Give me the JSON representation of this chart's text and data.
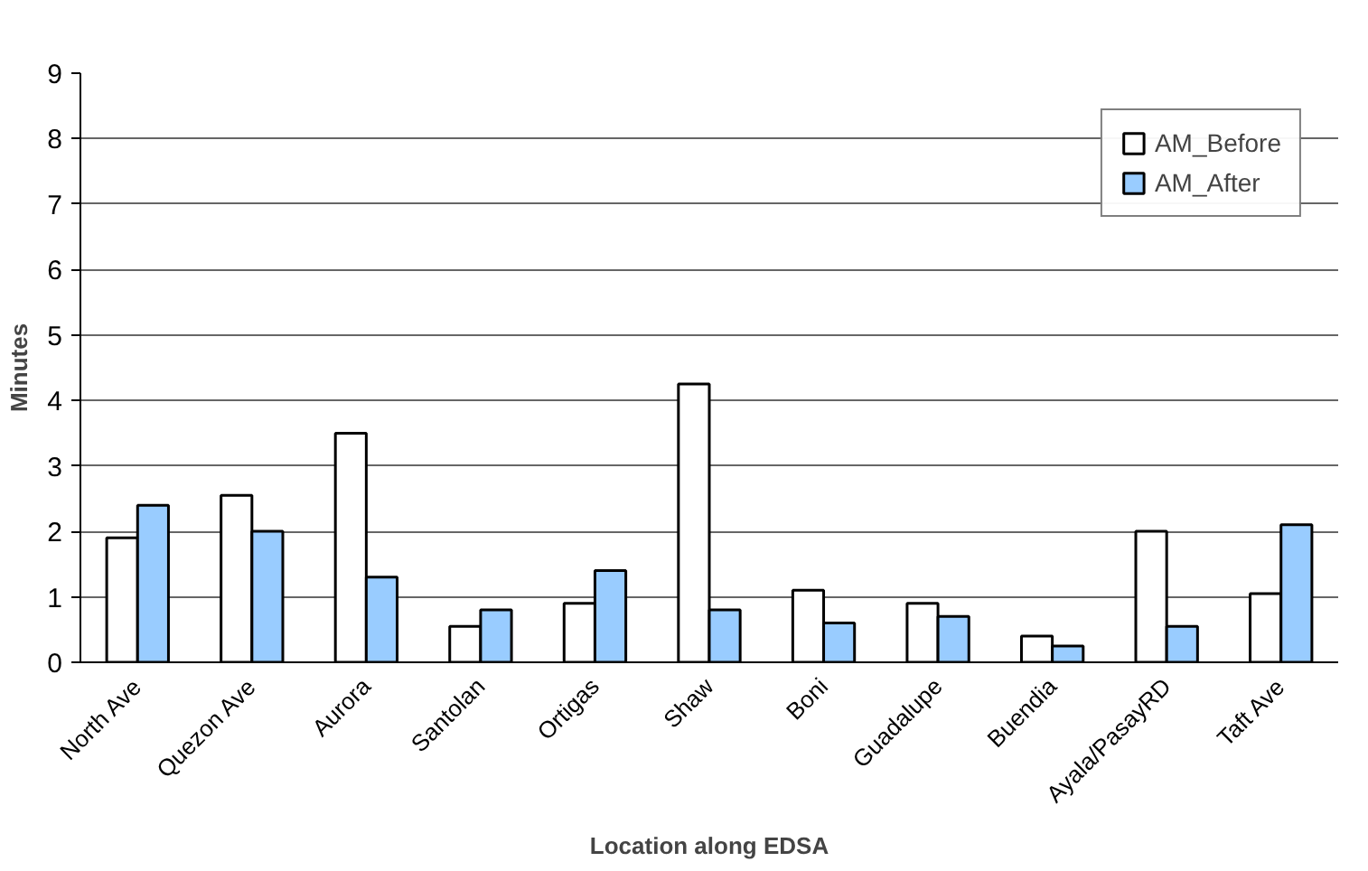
{
  "chart_data": {
    "type": "bar",
    "xlabel": "Location along EDSA",
    "ylabel": "Minutes",
    "categories": [
      "North Ave",
      "Quezon Ave",
      "Aurora",
      "Santolan",
      "Ortigas",
      "Shaw",
      "Boni",
      "Guadalupe",
      "Buendia",
      "Ayala/PasayRD",
      "Taft Ave"
    ],
    "series": [
      {
        "name": "AM_Before",
        "color": "#ffffff",
        "values": [
          1.9,
          2.55,
          3.5,
          0.55,
          0.9,
          4.25,
          1.1,
          0.9,
          0.4,
          2.0,
          1.05
        ]
      },
      {
        "name": "AM_After",
        "color": "#99ccff",
        "values": [
          2.4,
          2.0,
          1.3,
          0.8,
          1.4,
          0.8,
          0.6,
          0.7,
          0.25,
          0.55,
          2.1
        ]
      }
    ],
    "ylim": [
      0,
      9
    ],
    "yticks": [
      0,
      1,
      2,
      3,
      4,
      5,
      6,
      7,
      8,
      9
    ],
    "grid": "y",
    "legend": "top right"
  }
}
